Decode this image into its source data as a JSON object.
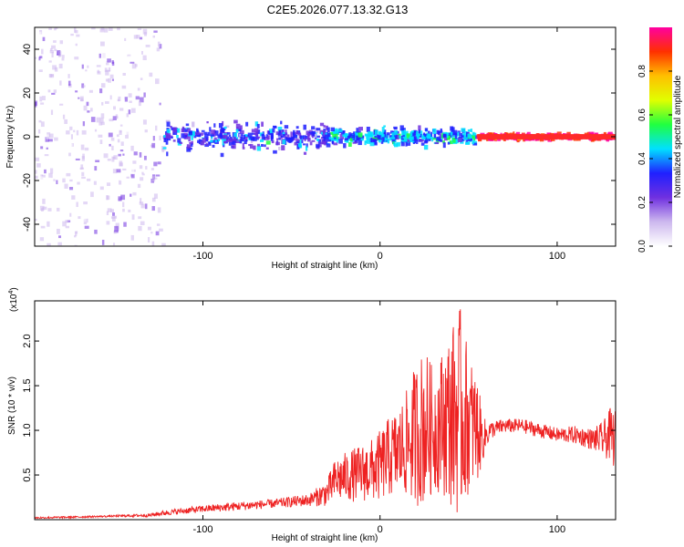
{
  "title": "C2E5.2026.077.13.32.G13",
  "chart_data": [
    {
      "type": "heatmap",
      "xlabel": "Height of straight line (km)",
      "ylabel": "Frequency (Hz)",
      "xlim": [
        -195,
        133
      ],
      "ylim": [
        -50,
        50
      ],
      "x_ticks": [
        -100,
        0,
        100
      ],
      "x_tick_labels": [
        "-100",
        "0",
        "100"
      ],
      "y_ticks": [
        -40,
        -20,
        0,
        20,
        40
      ],
      "y_tick_labels": [
        "-40",
        "-20",
        "0",
        "20",
        "40"
      ],
      "colorbar": {
        "label": "Normalized spectral amplitude",
        "range": [
          0,
          1
        ],
        "ticks": [
          0.0,
          0.2,
          0.4,
          0.6,
          0.8
        ],
        "tick_labels": [
          "0.0",
          "0.2",
          "0.4",
          "0.6",
          "0.8"
        ],
        "colors": [
          "#ffffff",
          "#cdb8ee",
          "#7030e0",
          "#2020ff",
          "#00e0ff",
          "#20ff40",
          "#e0ff00",
          "#ffc000",
          "#ff3000",
          "#ff00a0"
        ]
      },
      "regions": [
        {
          "x_range": [
            -195,
            -122
          ],
          "band_hz": 50,
          "mean_amplitude": 0.1,
          "note_colors": "sparse purple"
        },
        {
          "x_range": [
            -122,
            -30
          ],
          "band_hz": 10,
          "mean_amplitude": 0.3
        },
        {
          "x_range": [
            -30,
            55
          ],
          "band_hz": 6,
          "mean_amplitude": 0.4
        },
        {
          "x_range": [
            55,
            133
          ],
          "band_hz": 2,
          "mean_amplitude": 0.95
        }
      ]
    },
    {
      "type": "line",
      "xlabel": "Height of straight line (km)",
      "ylabel": "SNR (10 * v/v)",
      "y_multiplier_label": "(x10",
      "y_multiplier_exp": "4",
      "xlim": [
        -195,
        133
      ],
      "ylim": [
        0,
        2.45
      ],
      "x_ticks": [
        -100,
        0,
        100
      ],
      "x_tick_labels": [
        "-100",
        "0",
        "100"
      ],
      "y_ticks": [
        0.5,
        1.0,
        1.5,
        2.0
      ],
      "y_tick_labels": [
        "0.5",
        "1.0",
        "1.5",
        "2.0"
      ],
      "color": "#ee2222",
      "x": [
        -195,
        -170,
        -150,
        -130,
        -120,
        -100,
        -80,
        -60,
        -40,
        -30,
        -25,
        -15,
        -5,
        0,
        5,
        10,
        15,
        20,
        25,
        30,
        35,
        40,
        45,
        50,
        55,
        58,
        62,
        70,
        80,
        90,
        100,
        110,
        120,
        126,
        130,
        133
      ],
      "y": [
        0.02,
        0.03,
        0.04,
        0.05,
        0.08,
        0.12,
        0.15,
        0.18,
        0.22,
        0.3,
        0.45,
        0.5,
        0.55,
        0.6,
        0.7,
        0.75,
        0.85,
        0.95,
        1.05,
        1.0,
        1.1,
        1.15,
        1.2,
        1.1,
        1.0,
        0.9,
        1.0,
        1.05,
        1.05,
        1.0,
        0.95,
        0.95,
        0.9,
        0.9,
        0.95,
        0.9
      ],
      "spread": [
        0.01,
        0.01,
        0.01,
        0.02,
        0.03,
        0.04,
        0.05,
        0.05,
        0.07,
        0.15,
        0.25,
        0.3,
        0.35,
        0.4,
        0.45,
        0.5,
        0.6,
        0.8,
        0.9,
        0.7,
        0.8,
        1.0,
        1.2,
        0.8,
        0.6,
        0.25,
        0.1,
        0.08,
        0.08,
        0.08,
        0.08,
        0.1,
        0.12,
        0.2,
        0.3,
        0.35
      ]
    }
  ]
}
